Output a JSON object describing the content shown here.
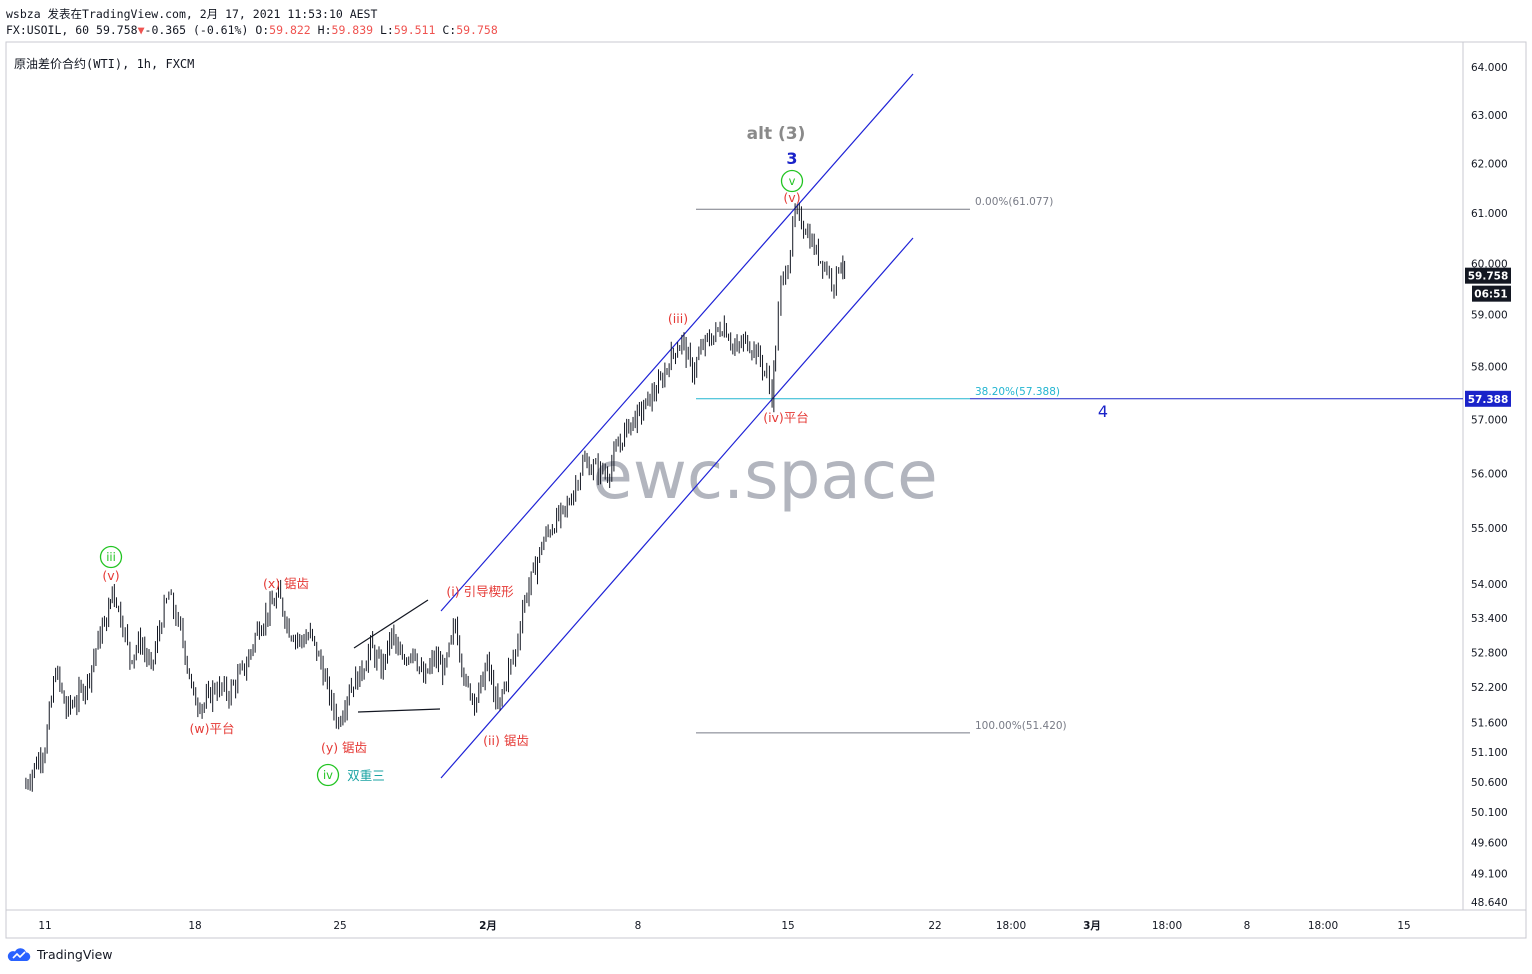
{
  "header": {
    "author_line": "wsbza 发表在TradingView.com, 2月 17, 2021 11:53:10 AEST",
    "symbol": "FX:USOIL, 60",
    "last": "59.758",
    "change_arrow": "▼",
    "change": "-0.365 (-0.61%)",
    "o_label": "O:",
    "o": "59.822",
    "h_label": "H:",
    "h": "59.839",
    "l_label": "L:",
    "l": "59.511",
    "c_label": "C:",
    "c": "59.758"
  },
  "symbol_title": "原油差价合约(WTI), 1h, FXCM",
  "watermark": "ewc.space",
  "footer": {
    "brand": "TradingView"
  },
  "price_axis": {
    "ticks": [
      "64.000",
      "63.000",
      "62.000",
      "61.000",
      "60.000",
      "59.000",
      "58.000",
      "57.000",
      "56.000",
      "55.000",
      "54.000",
      "53.400",
      "52.800",
      "52.200",
      "51.600",
      "51.100",
      "50.600",
      "50.100",
      "49.600",
      "49.100",
      "48.640"
    ],
    "tick_values": [
      64.0,
      63.0,
      62.0,
      61.0,
      60.0,
      59.0,
      58.0,
      57.0,
      56.0,
      55.0,
      54.0,
      53.4,
      52.8,
      52.2,
      51.6,
      51.1,
      50.6,
      50.1,
      49.6,
      49.1,
      48.64
    ],
    "last_price_tag": "59.758",
    "countdown_tag": "06:51",
    "fib_price_tag": "57.388"
  },
  "time_axis": {
    "ticks": [
      "11",
      "18",
      "25",
      "2月",
      "8",
      "15",
      "22",
      "18:00",
      "3月",
      "18:00",
      "8",
      "18:00",
      "15"
    ],
    "bold": [
      false,
      false,
      false,
      true,
      false,
      false,
      false,
      false,
      true,
      false,
      false,
      false,
      false
    ]
  },
  "colors": {
    "candle": "#131722",
    "channel": "#1e22d6",
    "wave_red": "#e53935",
    "wave_green": "#22c422",
    "wave_blue": "#1a23c9",
    "fib_cyan": "#22b5d1",
    "fib_gray": "#787b86",
    "alt_gray": "#8a8a8a",
    "tag_dark": "#131722",
    "tag_blue": "#1a23c9",
    "watermark": "#b2b5be"
  },
  "chart_data": {
    "type": "candlestick",
    "title": "原油差价合约(WTI), 1h, FXCM",
    "y_axis_side": "right",
    "ylim": [
      48.64,
      64.0
    ],
    "y_scale": "log",
    "x_range": [
      "2021-01-10",
      "2021-03-16"
    ],
    "price_path": [
      {
        "t": "2021-01-10 00:00",
        "p": 50.5
      },
      {
        "t": "2021-01-11 00:00",
        "p": 51.2
      },
      {
        "t": "2021-01-11 12:00",
        "p": 52.5
      },
      {
        "t": "2021-01-12 00:00",
        "p": 51.8
      },
      {
        "t": "2021-01-12 12:00",
        "p": 52.0
      },
      {
        "t": "2021-01-13 00:00",
        "p": 52.3
      },
      {
        "t": "2021-01-13 12:00",
        "p": 53.0
      },
      {
        "t": "2021-01-14 00:00",
        "p": 53.5
      },
      {
        "t": "2021-01-14 04:00",
        "p": 53.95
      },
      {
        "t": "2021-01-14 16:00",
        "p": 53.3
      },
      {
        "t": "2021-01-15 00:00",
        "p": 52.7
      },
      {
        "t": "2021-01-15 12:00",
        "p": 53.0
      },
      {
        "t": "2021-01-16 00:00",
        "p": 52.5
      },
      {
        "t": "2021-01-16 12:00",
        "p": 53.4
      },
      {
        "t": "2021-01-16 20:00",
        "p": 53.8
      },
      {
        "t": "2021-01-17 12:00",
        "p": 53.0
      },
      {
        "t": "2021-01-18 00:00",
        "p": 52.0
      },
      {
        "t": "2021-01-18 12:00",
        "p": 51.9
      },
      {
        "t": "2021-01-19 00:00",
        "p": 52.2
      },
      {
        "t": "2021-01-19 16:00",
        "p": 52.1
      },
      {
        "t": "2021-01-20 12:00",
        "p": 52.6
      },
      {
        "t": "2021-01-21 00:00",
        "p": 53.2
      },
      {
        "t": "2021-01-21 12:00",
        "p": 53.5
      },
      {
        "t": "2021-01-22 00:00",
        "p": 53.8
      },
      {
        "t": "2021-01-22 12:00",
        "p": 53.2
      },
      {
        "t": "2021-01-23 00:00",
        "p": 53.0
      },
      {
        "t": "2021-01-23 12:00",
        "p": 53.1
      },
      {
        "t": "2021-01-24 00:00",
        "p": 52.6
      },
      {
        "t": "2021-01-24 12:00",
        "p": 51.9
      },
      {
        "t": "2021-01-24 20:00",
        "p": 51.6
      },
      {
        "t": "2021-01-25 08:00",
        "p": 52.2
      },
      {
        "t": "2021-01-25 20:00",
        "p": 52.4
      },
      {
        "t": "2021-01-26 08:00",
        "p": 52.9
      },
      {
        "t": "2021-01-26 20:00",
        "p": 52.5
      },
      {
        "t": "2021-01-27 08:00",
        "p": 53.1
      },
      {
        "t": "2021-01-27 20:00",
        "p": 52.6
      },
      {
        "t": "2021-01-28 08:00",
        "p": 52.9
      },
      {
        "t": "2021-01-28 20:00",
        "p": 52.3
      },
      {
        "t": "2021-01-29 08:00",
        "p": 52.7
      },
      {
        "t": "2021-01-29 20:00",
        "p": 52.5
      },
      {
        "t": "2021-01-30 08:00",
        "p": 53.3
      },
      {
        "t": "2021-01-30 20:00",
        "p": 52.2
      },
      {
        "t": "2021-01-31 08:00",
        "p": 52.0
      },
      {
        "t": "2021-01-31 20:00",
        "p": 52.6
      },
      {
        "t": "2021-02-01 08:00",
        "p": 51.8
      },
      {
        "t": "2021-02-01 20:00",
        "p": 52.5
      },
      {
        "t": "2021-02-02 04:00",
        "p": 52.8
      },
      {
        "t": "2021-02-02 12:00",
        "p": 53.6
      },
      {
        "t": "2021-02-03 00:00",
        "p": 54.2
      },
      {
        "t": "2021-02-03 12:00",
        "p": 54.8
      },
      {
        "t": "2021-02-04 00:00",
        "p": 55.1
      },
      {
        "t": "2021-02-04 12:00",
        "p": 55.3
      },
      {
        "t": "2021-02-05 00:00",
        "p": 55.8
      },
      {
        "t": "2021-02-05 08:00",
        "p": 56.2
      },
      {
        "t": "2021-02-05 20:00",
        "p": 56.1
      },
      {
        "t": "2021-02-06 12:00",
        "p": 56.0
      },
      {
        "t": "2021-02-07 00:00",
        "p": 56.5
      },
      {
        "t": "2021-02-07 12:00",
        "p": 56.9
      },
      {
        "t": "2021-02-08 00:00",
        "p": 57.1
      },
      {
        "t": "2021-02-08 12:00",
        "p": 57.4
      },
      {
        "t": "2021-02-09 00:00",
        "p": 57.7
      },
      {
        "t": "2021-02-09 12:00",
        "p": 58.2
      },
      {
        "t": "2021-02-10 00:00",
        "p": 58.5
      },
      {
        "t": "2021-02-10 12:00",
        "p": 57.9
      },
      {
        "t": "2021-02-11 00:00",
        "p": 58.4
      },
      {
        "t": "2021-02-11 12:00",
        "p": 58.6
      },
      {
        "t": "2021-02-12 00:00",
        "p": 58.8
      },
      {
        "t": "2021-02-12 12:00",
        "p": 58.3
      },
      {
        "t": "2021-02-13 00:00",
        "p": 58.5
      },
      {
        "t": "2021-02-13 12:00",
        "p": 58.3
      },
      {
        "t": "2021-02-14 00:00",
        "p": 57.8
      },
      {
        "t": "2021-02-14 06:00",
        "p": 57.45
      },
      {
        "t": "2021-02-14 10:00",
        "p": 58.4
      },
      {
        "t": "2021-02-14 16:00",
        "p": 59.6
      },
      {
        "t": "2021-02-15 00:00",
        "p": 60.0
      },
      {
        "t": "2021-02-15 08:00",
        "p": 61.0
      },
      {
        "t": "2021-02-15 20:00",
        "p": 60.7
      },
      {
        "t": "2021-02-16 08:00",
        "p": 60.2
      },
      {
        "t": "2021-02-16 20:00",
        "p": 59.9
      },
      {
        "t": "2021-02-17 04:00",
        "p": 59.6
      },
      {
        "t": "2021-02-17 12:00",
        "p": 60.1
      },
      {
        "t": "2021-02-17 16:00",
        "p": 59.758
      }
    ],
    "fibonacci": [
      {
        "label": "0.00%(61.077)",
        "level": 0.0,
        "price": 61.077
      },
      {
        "label": "38.20%(57.388)",
        "level": 0.382,
        "price": 57.388
      },
      {
        "label": "100.00%(51.420)",
        "level": 1.0,
        "price": 51.42
      }
    ],
    "channel": "ascending parallel channel",
    "wave_labels": [
      {
        "text": "iii",
        "style": "green-circle"
      },
      {
        "text": "(v)",
        "style": "red"
      },
      {
        "text": "(w)平台",
        "style": "red"
      },
      {
        "text": "(x) 锯齿",
        "style": "red"
      },
      {
        "text": "(y) 锯齿",
        "style": "red"
      },
      {
        "text": "iv",
        "style": "green-circle"
      },
      {
        "text": "双重三",
        "style": "teal"
      },
      {
        "text": "(i) 引导楔形",
        "style": "red"
      },
      {
        "text": "(ii) 锯齿",
        "style": "red"
      },
      {
        "text": "(iii)",
        "style": "red"
      },
      {
        "text": "(iv)平台",
        "style": "red"
      },
      {
        "text": "(v)",
        "style": "red"
      },
      {
        "text": "v",
        "style": "green-circle"
      },
      {
        "text": "3",
        "style": "blue"
      },
      {
        "text": "alt (3)",
        "style": "gray"
      },
      {
        "text": "4",
        "style": "blue"
      }
    ]
  }
}
